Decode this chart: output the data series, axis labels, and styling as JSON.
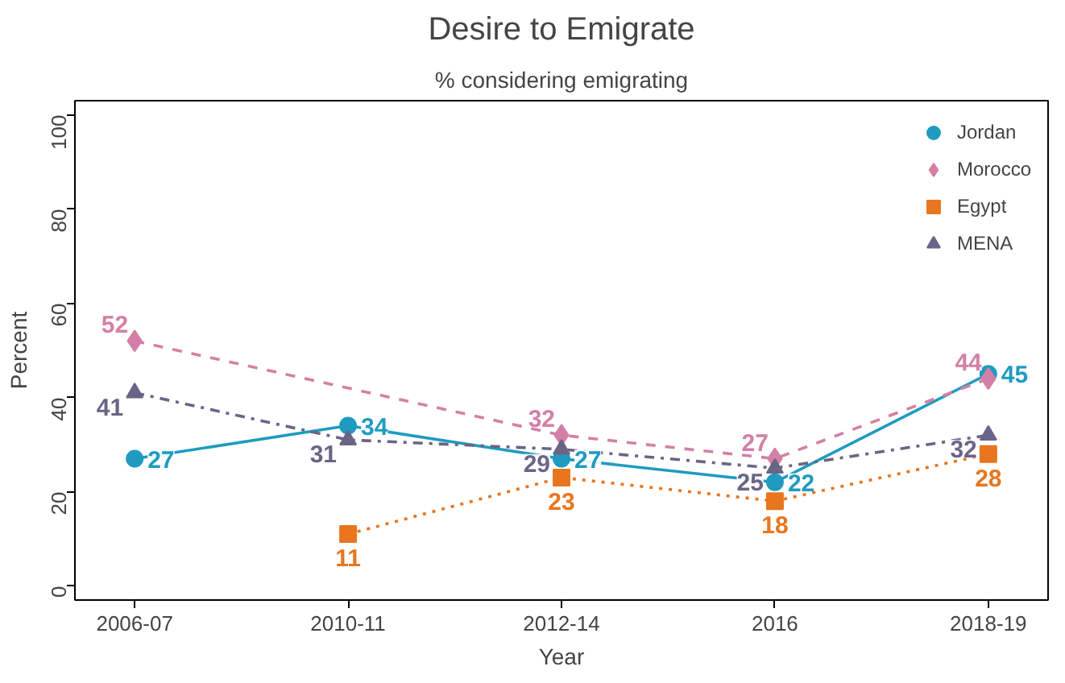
{
  "chart_data": {
    "type": "line",
    "title": "Desire to Emigrate",
    "subtitle": "% considering emigrating",
    "xlabel": "Year",
    "ylabel": "Percent",
    "categories": [
      "2006-07",
      "2010-11",
      "2012-14",
      "2016",
      "2018-19"
    ],
    "series": [
      {
        "name": "Jordan",
        "color": "#1f9bc0",
        "values": [
          27,
          34,
          27,
          22,
          45
        ],
        "marker": "circle",
        "line_style": "solid"
      },
      {
        "name": "Morocco",
        "color": "#d47fa6",
        "values": [
          52,
          null,
          32,
          27,
          44
        ],
        "marker": "diamond",
        "line_style": "dashed"
      },
      {
        "name": "Egypt",
        "color": "#e8761f",
        "values": [
          null,
          11,
          23,
          18,
          28
        ],
        "marker": "square",
        "line_style": "dotted"
      },
      {
        "name": "MENA",
        "color": "#6a6587",
        "values": [
          41,
          31,
          29,
          25,
          32
        ],
        "marker": "triangle",
        "line_style": "dashdot"
      }
    ],
    "ylim": [
      -3,
      103
    ],
    "yticks": [
      0,
      20,
      40,
      60,
      80,
      100
    ],
    "data_labels": true,
    "legend": "top right",
    "grid": false
  }
}
